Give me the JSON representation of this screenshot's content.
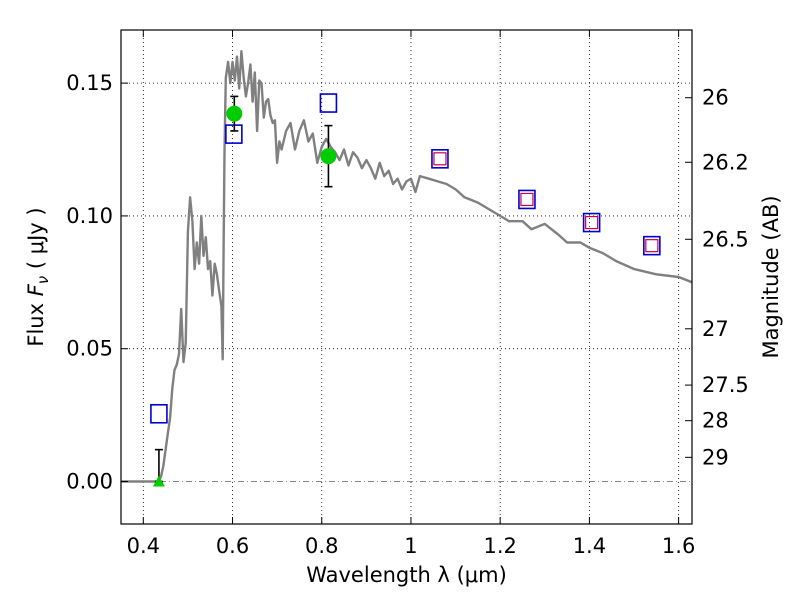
{
  "chart_data": {
    "type": "scatter",
    "xlabel": "Wavelength  λ (μm)",
    "ylabel": "Flux  F_ν  ( μJy )",
    "ylabel_right": "Magnitude (AB)",
    "xlim": [
      0.35,
      1.63
    ],
    "ylim": [
      -0.016,
      0.17
    ],
    "x_ticks": [
      0.4,
      0.6,
      0.8,
      1.0,
      1.2,
      1.4,
      1.6
    ],
    "x_tick_labels": [
      "0.4",
      "0.6",
      "0.8",
      "1",
      "1.2",
      "1.4",
      "1.6"
    ],
    "y_ticks": [
      0.0,
      0.05,
      0.1,
      0.15
    ],
    "y_tick_labels": [
      "0.00",
      "0.05",
      "0.10",
      "0.15"
    ],
    "right_ticks": [
      {
        "label": "26",
        "flux": 0.1445
      },
      {
        "label": "26.2",
        "flux": 0.1202
      },
      {
        "label": "26.5",
        "flux": 0.0912
      },
      {
        "label": "27",
        "flux": 0.0575
      },
      {
        "label": "27.5",
        "flux": 0.0363
      },
      {
        "label": "28",
        "flux": 0.0229
      },
      {
        "label": "29",
        "flux": 0.0091
      }
    ],
    "grid": true,
    "colors": {
      "model": "#808080",
      "observed": "#00cc00",
      "errorbar": "#000000",
      "model_square": "#0000cc",
      "inner_square": "#cc0044",
      "zero_line": "#888888"
    },
    "series": [
      {
        "kind": "line",
        "x": [
          0.35,
          0.42,
          0.435,
          0.44,
          0.445,
          0.45,
          0.455,
          0.46,
          0.465,
          0.47,
          0.475,
          0.48,
          0.485,
          0.49,
          0.495,
          0.5,
          0.505,
          0.51,
          0.515,
          0.52,
          0.525,
          0.53,
          0.535,
          0.54,
          0.545,
          0.55,
          0.555,
          0.56,
          0.565,
          0.57,
          0.575,
          0.578,
          0.58,
          0.582,
          0.585,
          0.59,
          0.595,
          0.6,
          0.605,
          0.61,
          0.615,
          0.62,
          0.625,
          0.63,
          0.635,
          0.64,
          0.645,
          0.65,
          0.655,
          0.66,
          0.665,
          0.67,
          0.675,
          0.68,
          0.685,
          0.69,
          0.695,
          0.7,
          0.705,
          0.71,
          0.72,
          0.73,
          0.74,
          0.75,
          0.76,
          0.77,
          0.78,
          0.79,
          0.8,
          0.81,
          0.82,
          0.83,
          0.84,
          0.85,
          0.86,
          0.87,
          0.88,
          0.89,
          0.9,
          0.91,
          0.92,
          0.93,
          0.94,
          0.95,
          0.96,
          0.97,
          0.98,
          0.99,
          1.0,
          1.01,
          1.02,
          1.04,
          1.06,
          1.08,
          1.1,
          1.12,
          1.15,
          1.18,
          1.2,
          1.22,
          1.25,
          1.27,
          1.3,
          1.33,
          1.35,
          1.38,
          1.4,
          1.43,
          1.46,
          1.5,
          1.55,
          1.6,
          1.63
        ],
        "y": [
          0.0,
          0.0,
          0.0,
          0.002,
          0.006,
          0.012,
          0.018,
          0.024,
          0.035,
          0.042,
          0.044,
          0.048,
          0.065,
          0.045,
          0.052,
          0.094,
          0.107,
          0.098,
          0.08,
          0.09,
          0.082,
          0.1,
          0.085,
          0.092,
          0.08,
          0.083,
          0.07,
          0.082,
          0.078,
          0.072,
          0.066,
          0.046,
          0.088,
          0.124,
          0.152,
          0.158,
          0.15,
          0.158,
          0.151,
          0.16,
          0.148,
          0.162,
          0.152,
          0.145,
          0.15,
          0.157,
          0.143,
          0.154,
          0.132,
          0.151,
          0.15,
          0.137,
          0.143,
          0.144,
          0.138,
          0.135,
          0.136,
          0.12,
          0.128,
          0.125,
          0.132,
          0.135,
          0.125,
          0.132,
          0.136,
          0.128,
          0.131,
          0.12,
          0.126,
          0.129,
          0.126,
          0.124,
          0.121,
          0.125,
          0.119,
          0.124,
          0.122,
          0.118,
          0.121,
          0.118,
          0.114,
          0.12,
          0.115,
          0.117,
          0.112,
          0.114,
          0.11,
          0.113,
          0.114,
          0.109,
          0.115,
          0.114,
          0.113,
          0.112,
          0.11,
          0.107,
          0.105,
          0.102,
          0.1,
          0.098,
          0.098,
          0.095,
          0.097,
          0.093,
          0.09,
          0.09,
          0.088,
          0.086,
          0.083,
          0.08,
          0.078,
          0.077,
          0.075
        ]
      },
      {
        "name": "observed",
        "kind": "points",
        "x": [
          0.604,
          0.815
        ],
        "y": [
          0.1385,
          0.1225
        ],
        "yerr": [
          0.0065,
          0.0115
        ]
      },
      {
        "name": "upper_limit",
        "kind": "triangle",
        "x": [
          0.435
        ],
        "y": [
          0.0
        ],
        "yerr_up": [
          0.012
        ]
      },
      {
        "name": "model_photometry",
        "kind": "squares",
        "x": [
          0.435,
          0.603,
          0.815,
          1.065,
          1.26,
          1.405,
          1.54
        ],
        "y": [
          0.0255,
          0.1308,
          0.1425,
          0.1215,
          0.1062,
          0.0975,
          0.0888
        ]
      },
      {
        "name": "model_photometry_inner",
        "kind": "inner_squares",
        "x": [
          1.065,
          1.26,
          1.405,
          1.54
        ],
        "y": [
          0.1215,
          0.1062,
          0.0975,
          0.0888
        ]
      }
    ]
  }
}
